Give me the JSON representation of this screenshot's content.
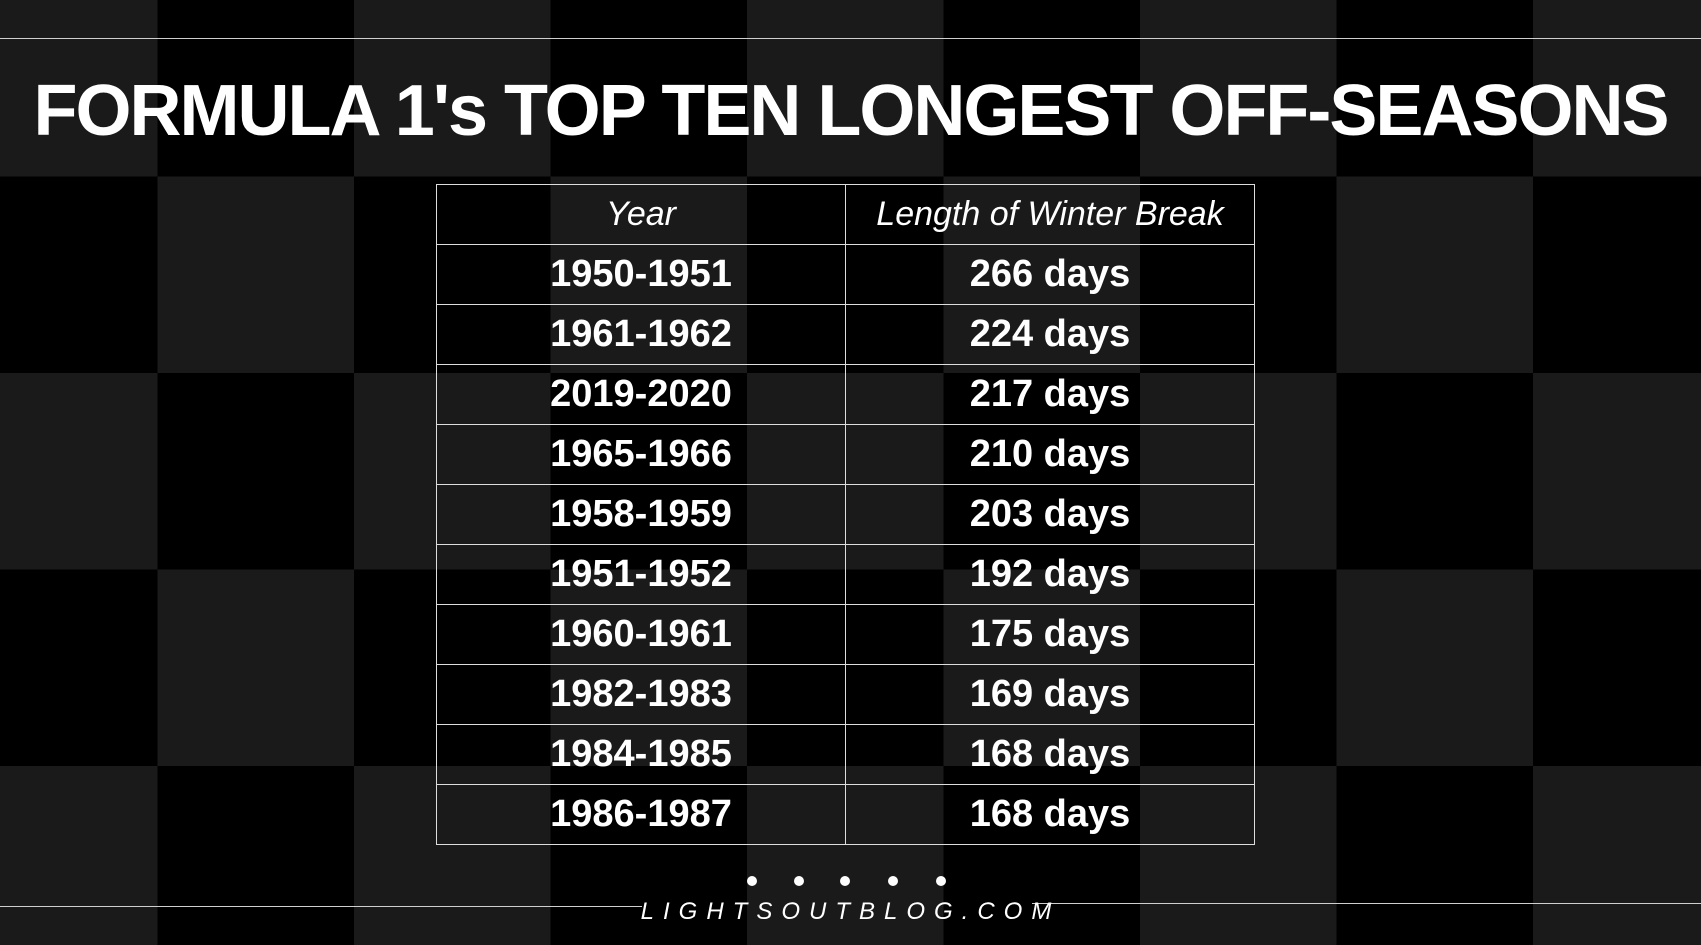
{
  "header": {
    "title": "FORMULA 1's TOP TEN LONGEST OFF-SEASONS"
  },
  "table": {
    "columns": [
      "Year",
      "Length of Winter Break"
    ],
    "rows": [
      [
        "1950-1951",
        "266 days"
      ],
      [
        "1961-1962",
        "224 days"
      ],
      [
        "2019-2020",
        "217 days"
      ],
      [
        "1965-1966",
        "210 days"
      ],
      [
        "1958-1959",
        "203 days"
      ],
      [
        "1951-1952",
        "192 days"
      ],
      [
        "1960-1961",
        "175 days"
      ],
      [
        "1982-1983",
        "169 days"
      ],
      [
        "1984-1985",
        "168 days"
      ],
      [
        "1986-1987",
        "168 days"
      ]
    ]
  },
  "footer": {
    "site": "LIGHTSOUTBLOG.COM"
  }
}
